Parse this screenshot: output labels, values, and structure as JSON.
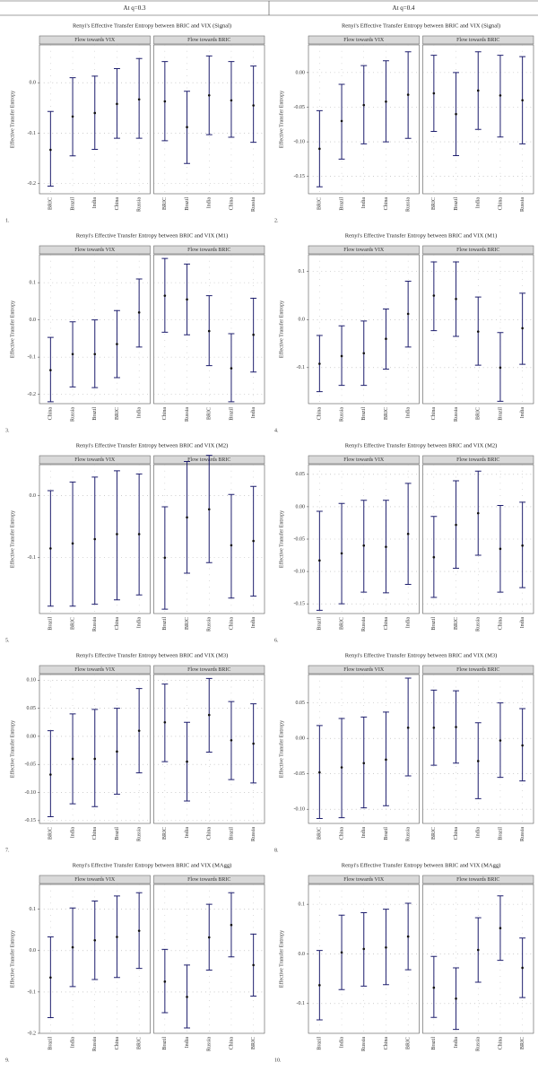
{
  "header": {
    "left": "At q=0.3",
    "right": "At q=0.4"
  },
  "chart_data": [
    {
      "type": "errorbar",
      "number": "1.",
      "title": "Renyi's Effective Transfer Entropy between BRIC and VIX (Signal)",
      "y_label": "Effective Transfer Entropy",
      "color": "#1f1f6e",
      "grid": true,
      "ylim": [
        -0.22,
        0.075
      ],
      "yticks": [
        -0.2,
        -0.1,
        {
          "value": 0,
          "label": "0.0"
        }
      ],
      "facets": [
        {
          "strip": "Flow towards VIX",
          "categories": [
            "BRIC",
            "Brazil",
            "India",
            "China",
            "Russia"
          ],
          "values": [
            -0.133,
            -0.067,
            -0.06,
            -0.042,
            -0.033
          ],
          "lower": [
            -0.205,
            -0.145,
            -0.132,
            -0.11,
            -0.11
          ],
          "upper": [
            -0.057,
            0.01,
            0.013,
            0.028,
            0.048
          ]
        },
        {
          "strip": "Flow towards BRIC",
          "categories": [
            "BRIC",
            "Brazil",
            "India",
            "China",
            "Russia"
          ],
          "values": [
            -0.037,
            -0.088,
            -0.025,
            -0.035,
            -0.045
          ],
          "lower": [
            -0.115,
            -0.16,
            -0.103,
            -0.108,
            -0.118
          ],
          "upper": [
            0.042,
            -0.017,
            0.053,
            0.042,
            0.033
          ]
        }
      ]
    },
    {
      "type": "errorbar",
      "number": "2.",
      "title": "Renyi's Effective Transfer Entropy between BRIC and VIX (Signal)",
      "y_label": "Effective Transfer Entropy",
      "color": "#1f1f6e",
      "grid": true,
      "ylim": [
        -0.175,
        0.04
      ],
      "yticks": [
        -0.15,
        {
          "value": -0.1,
          "label": "-0.10"
        },
        -0.05,
        {
          "value": 0,
          "label": "0.00"
        }
      ],
      "facets": [
        {
          "strip": "Flow towards VIX",
          "categories": [
            "BRIC",
            "Brazil",
            "India",
            "China",
            "Russia"
          ],
          "values": [
            -0.11,
            -0.07,
            -0.047,
            -0.042,
            -0.032
          ],
          "lower": [
            -0.165,
            -0.125,
            -0.103,
            -0.1,
            -0.095
          ],
          "upper": [
            -0.055,
            -0.017,
            0.01,
            0.017,
            0.03
          ]
        },
        {
          "strip": "Flow towards BRIC",
          "categories": [
            "BRIC",
            "Brazil",
            "India",
            "China",
            "Russia"
          ],
          "values": [
            -0.03,
            -0.06,
            -0.026,
            -0.033,
            -0.04
          ],
          "lower": [
            -0.085,
            -0.12,
            -0.082,
            -0.093,
            -0.103
          ],
          "upper": [
            0.025,
            0,
            0.03,
            0.025,
            0.023
          ]
        }
      ]
    },
    {
      "type": "errorbar",
      "number": "3.",
      "title": "Renyi's Effective Transfer Entropy between BRIC and VIX (M1)",
      "y_label": "Effective Transfer Entropy",
      "color": "#1f1f6e",
      "grid": true,
      "ylim": [
        -0.225,
        0.175
      ],
      "yticks": [
        -0.2,
        -0.1,
        {
          "value": 0,
          "label": "0.0"
        },
        0.1
      ],
      "facets": [
        {
          "strip": "Flow towards VIX",
          "categories": [
            "China",
            "Russia",
            "Brazil",
            "BRIC",
            "India"
          ],
          "values": [
            -0.135,
            -0.092,
            -0.092,
            -0.065,
            0.02
          ],
          "lower": [
            -0.22,
            -0.18,
            -0.182,
            -0.155,
            -0.073
          ],
          "upper": [
            -0.047,
            -0.005,
            0,
            0.025,
            0.11
          ]
        },
        {
          "strip": "Flow towards BRIC",
          "categories": [
            "China",
            "Russia",
            "BRIC",
            "Brazil",
            "India"
          ],
          "values": [
            0.065,
            0.055,
            -0.03,
            -0.13,
            -0.04
          ],
          "lower": [
            -0.033,
            -0.04,
            -0.123,
            -0.22,
            -0.14
          ],
          "upper": [
            0.165,
            0.15,
            0.065,
            -0.037,
            0.058
          ]
        }
      ]
    },
    {
      "type": "errorbar",
      "number": "4.",
      "title": "Renyi's Effective Transfer Entropy between BRIC and VIX (M1)",
      "y_label": "Effective Transfer Entropy",
      "color": "#1f1f6e",
      "grid": true,
      "ylim": [
        -0.175,
        0.135
      ],
      "yticks": [
        -0.1,
        {
          "value": 0,
          "label": "0.0"
        },
        0.1
      ],
      "facets": [
        {
          "strip": "Flow towards VIX",
          "categories": [
            "China",
            "Russia",
            "Brazil",
            "BRIC",
            "India"
          ],
          "values": [
            -0.092,
            -0.076,
            -0.07,
            -0.04,
            0.012
          ],
          "lower": [
            -0.15,
            -0.137,
            -0.137,
            -0.103,
            -0.057
          ],
          "upper": [
            -0.033,
            -0.013,
            -0.003,
            0.022,
            0.08
          ]
        },
        {
          "strip": "Flow towards BRIC",
          "categories": [
            "China",
            "Russia",
            "BRIC",
            "Brazil",
            "India"
          ],
          "values": [
            0.05,
            0.043,
            -0.025,
            -0.1,
            -0.018
          ],
          "lower": [
            -0.023,
            -0.035,
            -0.095,
            -0.17,
            -0.093
          ],
          "upper": [
            0.12,
            0.12,
            0.047,
            -0.027,
            0.055
          ]
        }
      ]
    },
    {
      "type": "errorbar",
      "number": "5.",
      "title": "Renyi's Effective Transfer Entropy between BRIC and VIX (M2)",
      "y_label": "Effective Transfer Entropy",
      "color": "#1f1f6e",
      "grid": true,
      "ylim": [
        -0.19,
        0.05
      ],
      "yticks": [
        -0.1,
        {
          "value": 0,
          "label": "0.0"
        }
      ],
      "facets": [
        {
          "strip": "Flow towards VIX",
          "categories": [
            "Brazil",
            "BRIC",
            "Russia",
            "China",
            "India"
          ],
          "values": [
            -0.085,
            -0.077,
            -0.07,
            -0.062,
            -0.062
          ],
          "lower": [
            -0.178,
            -0.178,
            -0.175,
            -0.168,
            -0.16
          ],
          "upper": [
            0.008,
            0.022,
            0.03,
            0.04,
            0.035
          ]
        },
        {
          "strip": "Flow towards BRIC",
          "categories": [
            "Brazil",
            "BRIC",
            "Russia",
            "China",
            "India"
          ],
          "values": [
            -0.1,
            -0.035,
            -0.022,
            -0.08,
            -0.073
          ],
          "lower": [
            -0.183,
            -0.125,
            -0.108,
            -0.165,
            -0.162
          ],
          "upper": [
            -0.018,
            0.055,
            0.065,
            0.002,
            0.015
          ]
        }
      ]
    },
    {
      "type": "errorbar",
      "number": "6.",
      "title": "Renyi's Effective Transfer Entropy between BRIC and VIX (M2)",
      "y_label": "Effective Transfer Entropy",
      "color": "#1f1f6e",
      "grid": true,
      "ylim": [
        -0.165,
        0.065
      ],
      "yticks": [
        -0.15,
        {
          "value": -0.1,
          "label": "-0.10"
        },
        -0.05,
        {
          "value": 0,
          "label": "0.00"
        },
        0.05
      ],
      "facets": [
        {
          "strip": "Flow towards VIX",
          "categories": [
            "Brazil",
            "BRIC",
            "Russia",
            "China",
            "India"
          ],
          "values": [
            -0.083,
            -0.072,
            -0.06,
            -0.062,
            -0.042
          ],
          "lower": [
            -0.16,
            -0.15,
            -0.132,
            -0.133,
            -0.12
          ],
          "upper": [
            -0.007,
            0.005,
            0.01,
            0.01,
            0.036
          ]
        },
        {
          "strip": "Flow towards BRIC",
          "categories": [
            "Brazil",
            "BRIC",
            "Russia",
            "China",
            "India"
          ],
          "values": [
            -0.078,
            -0.028,
            -0.01,
            -0.065,
            -0.06
          ],
          "lower": [
            -0.14,
            -0.095,
            -0.075,
            -0.132,
            -0.125
          ],
          "upper": [
            -0.015,
            0.04,
            0.055,
            0.002,
            0.007
          ]
        }
      ]
    },
    {
      "type": "errorbar",
      "number": "7.",
      "title": "Renyi's Effective Transfer Entropy between BRIC and VIX (M3)",
      "y_label": "Effective Transfer Entropy",
      "color": "#1f1f6e",
      "grid": true,
      "ylim": [
        -0.155,
        0.11
      ],
      "yticks": [
        -0.15,
        {
          "value": -0.1,
          "label": "-0.10"
        },
        -0.05,
        {
          "value": 0,
          "label": "0.00"
        },
        0.05,
        {
          "value": 0.1,
          "label": "0.10"
        }
      ],
      "facets": [
        {
          "strip": "Flow towards VIX",
          "categories": [
            "BRIC",
            "India",
            "China",
            "Brazil",
            "Russia"
          ],
          "values": [
            -0.068,
            -0.04,
            -0.04,
            -0.027,
            0.01
          ],
          "lower": [
            -0.143,
            -0.12,
            -0.125,
            -0.103,
            -0.065
          ],
          "upper": [
            0.01,
            0.04,
            0.048,
            0.05,
            0.085
          ]
        },
        {
          "strip": "Flow towards BRIC",
          "categories": [
            "BRIC",
            "India",
            "China",
            "Brazil",
            "Russia"
          ],
          "values": [
            0.025,
            -0.045,
            0.038,
            -0.007,
            -0.013
          ],
          "lower": [
            -0.045,
            -0.115,
            -0.028,
            -0.077,
            -0.083
          ],
          "upper": [
            0.093,
            0.025,
            0.103,
            0.062,
            0.058
          ]
        }
      ]
    },
    {
      "type": "errorbar",
      "number": "8.",
      "title": "Renyi's Effective Transfer Entropy between BRIC and VIX (M3)",
      "y_label": "Effective Transfer Entropy",
      "color": "#1f1f6e",
      "grid": true,
      "ylim": [
        -0.12,
        0.09
      ],
      "yticks": [
        {
          "value": -0.1,
          "label": "-0.10"
        },
        -0.05,
        {
          "value": 0,
          "label": "0.00"
        },
        0.05
      ],
      "facets": [
        {
          "strip": "Flow towards VIX",
          "categories": [
            "BRIC",
            "China",
            "India",
            "Brazil",
            "Russia"
          ],
          "values": [
            -0.048,
            -0.041,
            -0.035,
            -0.03,
            0.015
          ],
          "lower": [
            -0.113,
            -0.112,
            -0.098,
            -0.095,
            -0.053
          ],
          "upper": [
            0.018,
            0.028,
            0.03,
            0.037,
            0.085
          ]
        },
        {
          "strip": "Flow towards BRIC",
          "categories": [
            "BRIC",
            "China",
            "India",
            "Brazil",
            "Russia"
          ],
          "values": [
            0.015,
            0.016,
            -0.032,
            -0.003,
            -0.01
          ],
          "lower": [
            -0.038,
            -0.035,
            -0.085,
            -0.055,
            -0.06
          ],
          "upper": [
            0.068,
            0.067,
            0.022,
            0.05,
            0.042
          ]
        }
      ]
    },
    {
      "type": "errorbar",
      "number": "9.",
      "title": "Renyi's Effective Transfer Entropy between BRIC and VIX (MAgg)",
      "y_label": "Effective Transfer Entropy",
      "color": "#1f1f6e",
      "grid": true,
      "ylim": [
        -0.2,
        0.16
      ],
      "yticks": [
        -0.2,
        -0.1,
        {
          "value": 0,
          "label": "0.0"
        },
        0.1
      ],
      "facets": [
        {
          "strip": "Flow towards VIX",
          "categories": [
            "Brazil",
            "India",
            "Russia",
            "China",
            "BRIC"
          ],
          "values": [
            -0.065,
            0.008,
            0.025,
            0.033,
            0.048
          ],
          "lower": [
            -0.162,
            -0.087,
            -0.07,
            -0.065,
            -0.043
          ],
          "upper": [
            0.033,
            0.103,
            0.12,
            0.132,
            0.14
          ]
        },
        {
          "strip": "Flow towards BRIC",
          "categories": [
            "Brazil",
            "India",
            "Russia",
            "China",
            "BRIC"
          ],
          "values": [
            -0.075,
            -0.112,
            0.032,
            0.062,
            -0.035
          ],
          "lower": [
            -0.15,
            -0.187,
            -0.047,
            -0.015,
            -0.11
          ],
          "upper": [
            0.003,
            -0.035,
            0.112,
            0.14,
            0.04
          ]
        }
      ]
    },
    {
      "type": "errorbar",
      "number": "10.",
      "title": "Renyi's Effective Transfer Entropy between BRIC and VIX (MAgg)",
      "y_label": "Effective Transfer Entropy",
      "color": "#1f1f6e",
      "grid": true,
      "ylim": [
        -0.16,
        0.14
      ],
      "yticks": [
        -0.1,
        {
          "value": 0,
          "label": "0.0"
        },
        0.1
      ],
      "facets": [
        {
          "strip": "Flow towards VIX",
          "categories": [
            "Brazil",
            "India",
            "Russia",
            "China",
            "BRIC"
          ],
          "values": [
            -0.063,
            0.003,
            0.01,
            0.013,
            0.035
          ],
          "lower": [
            -0.133,
            -0.072,
            -0.065,
            -0.062,
            -0.032
          ],
          "upper": [
            0.007,
            0.078,
            0.083,
            0.09,
            0.102
          ]
        },
        {
          "strip": "Flow towards BRIC",
          "categories": [
            "Brazil",
            "India",
            "Russia",
            "China",
            "BRIC"
          ],
          "values": [
            -0.068,
            -0.09,
            0.008,
            0.052,
            -0.028
          ],
          "lower": [
            -0.128,
            -0.152,
            -0.057,
            -0.013,
            -0.088
          ],
          "upper": [
            -0.005,
            -0.028,
            0.073,
            0.117,
            0.032
          ]
        }
      ]
    }
  ]
}
